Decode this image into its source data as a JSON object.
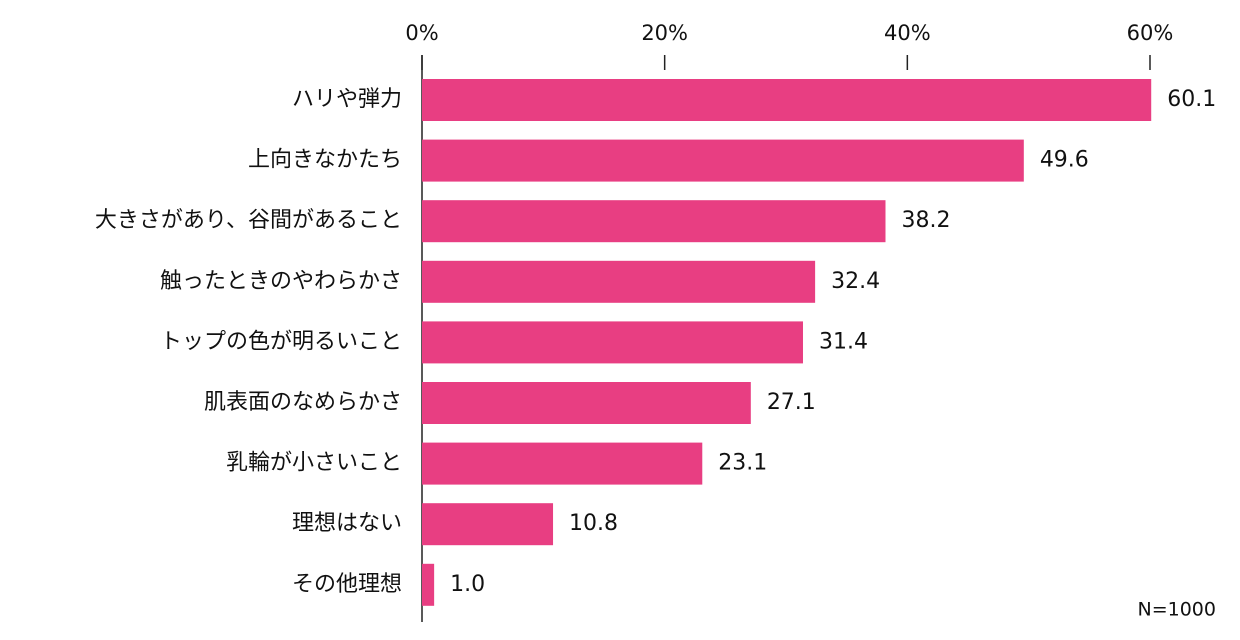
{
  "chart_data": {
    "type": "bar",
    "orientation": "horizontal",
    "categories": [
      "ハリや弾力",
      "上向きなかたち",
      "大きさがあり、谷間があること",
      "触ったときのやわらかさ",
      "トップの色が明るいこと",
      "肌表面のなめらかさ",
      "乳輪が小さいこと",
      "理想はない",
      "その他理想"
    ],
    "values": [
      60.1,
      49.6,
      38.2,
      32.4,
      31.4,
      27.1,
      23.1,
      10.8,
      1.0
    ],
    "value_labels": [
      "60.1",
      "49.6",
      "38.2",
      "32.4",
      "31.4",
      "27.1",
      "23.1",
      "10.8",
      "1.0"
    ],
    "color": "#e83e82",
    "xlim": [
      0,
      60
    ],
    "xticks": [
      {
        "value": 0,
        "label": "0%"
      },
      {
        "value": 20,
        "label": "20%"
      },
      {
        "value": 40,
        "label": "40%"
      },
      {
        "value": 60,
        "label": "60%"
      }
    ],
    "annotation": "N=1000"
  }
}
